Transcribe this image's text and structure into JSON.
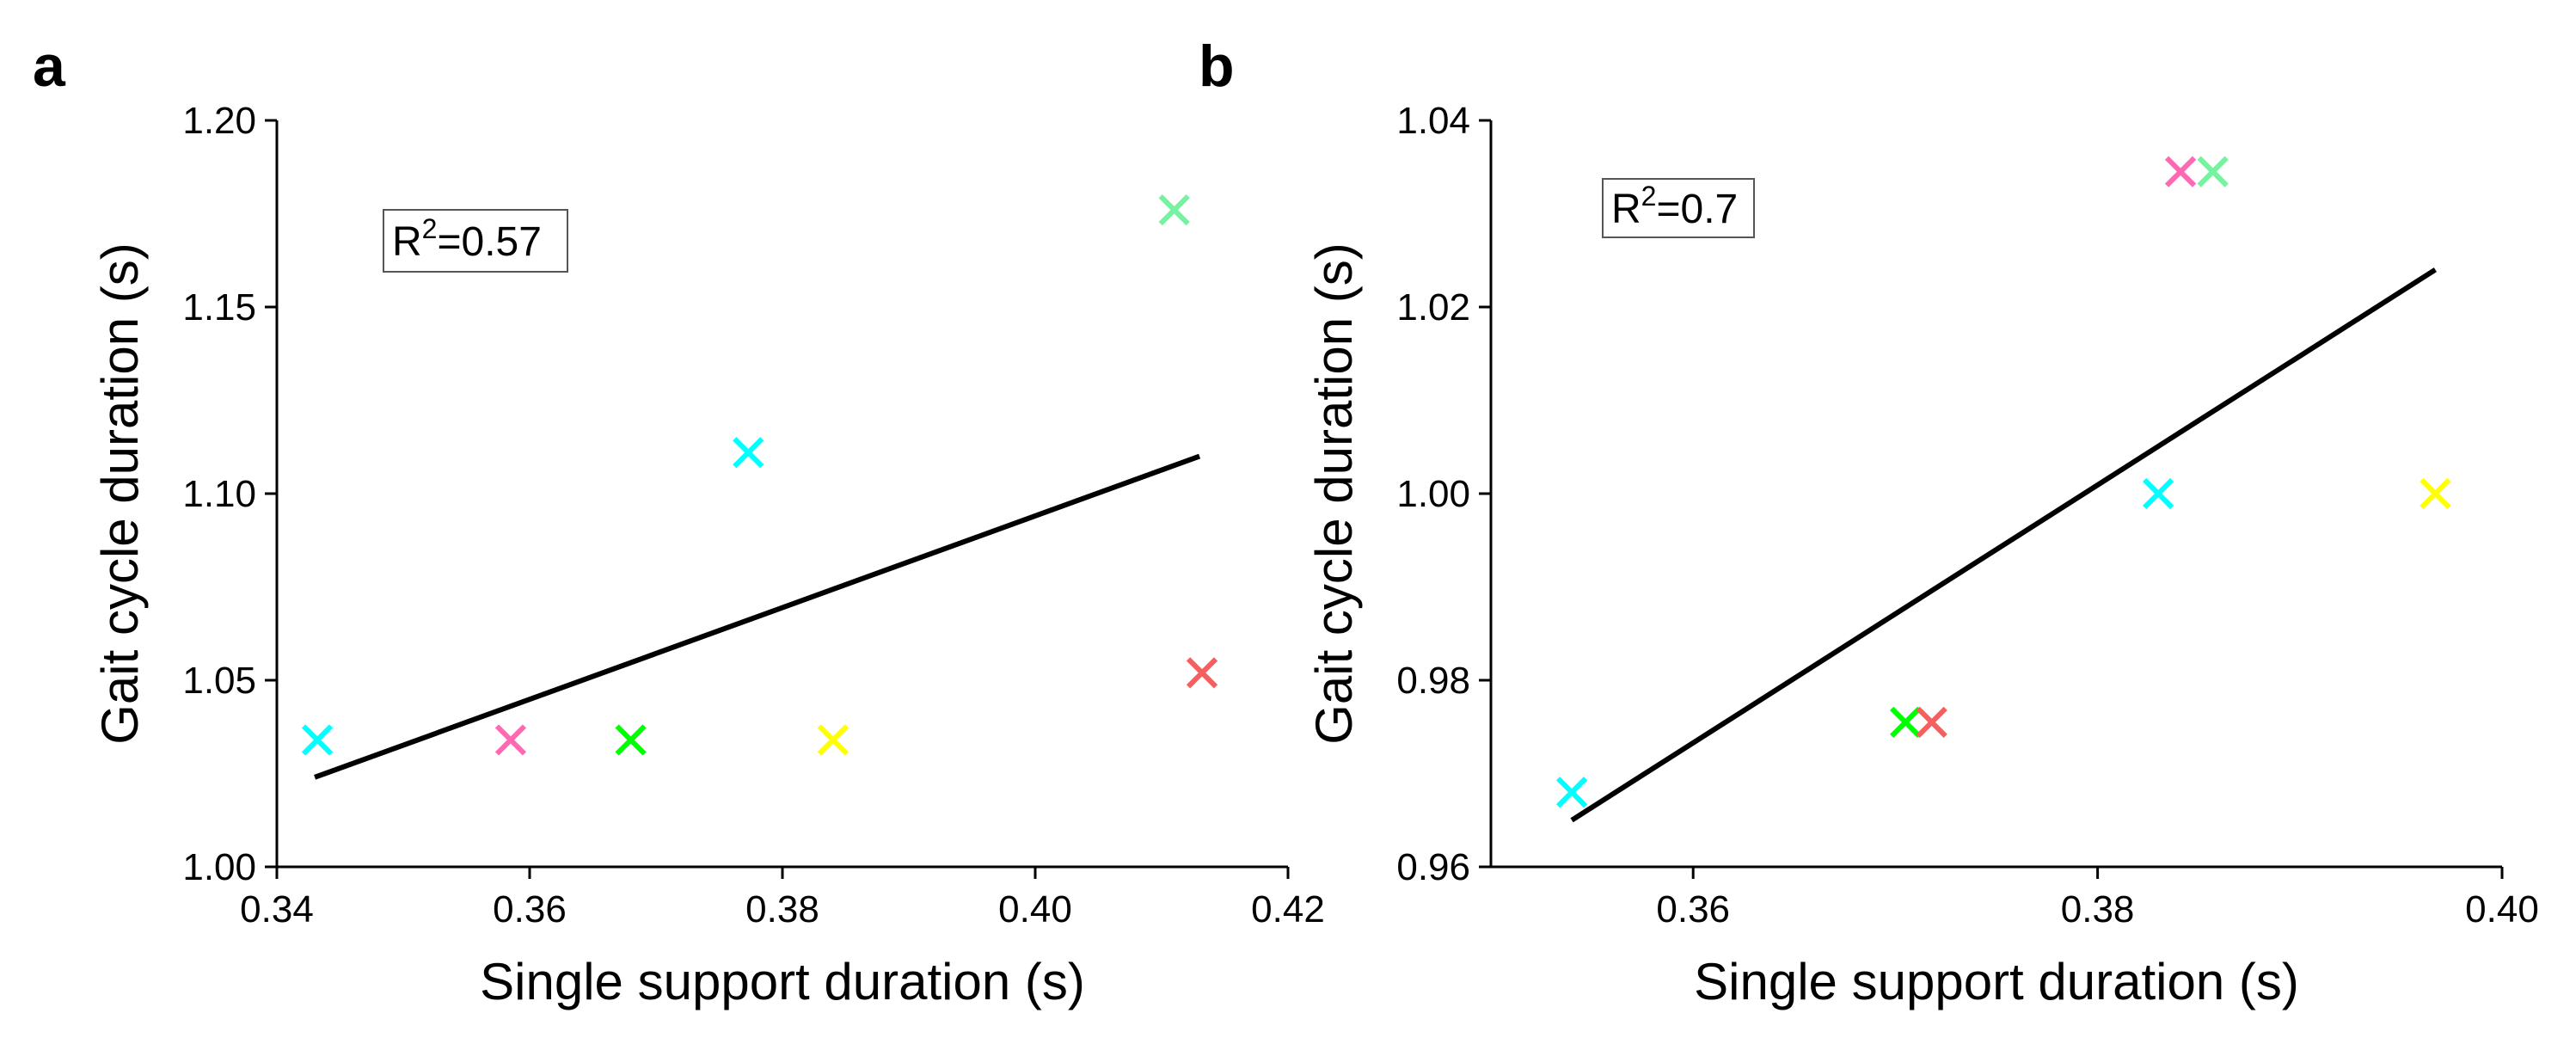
{
  "chart_data": [
    {
      "type": "scatter",
      "panel_label": "a",
      "xlabel": "Single support duration (s)",
      "ylabel": "Gait cycle duration (s)",
      "xlim": [
        0.34,
        0.42
      ],
      "ylim": [
        1.0,
        1.2
      ],
      "xticks": [
        "0.34",
        "0.36",
        "0.38",
        "0.40",
        "0.42"
      ],
      "yticks": [
        "1.00",
        "1.05",
        "1.10",
        "1.15",
        "1.20"
      ],
      "annotation": {
        "prefix": "R",
        "superscript": "2",
        "suffix": "=0.57"
      },
      "points": [
        {
          "x": 0.3432,
          "y": 1.034,
          "color": "#00ffff"
        },
        {
          "x": 0.3585,
          "y": 1.034,
          "color": "#ff69b4"
        },
        {
          "x": 0.368,
          "y": 1.034,
          "color": "#00ff00"
        },
        {
          "x": 0.3773,
          "y": 1.111,
          "color": "#00ffff"
        },
        {
          "x": 0.384,
          "y": 1.034,
          "color": "#ffff00"
        },
        {
          "x": 0.411,
          "y": 1.176,
          "color": "#77f2a0"
        },
        {
          "x": 0.4132,
          "y": 1.052,
          "color": "#f55f5f"
        }
      ],
      "fit_line": {
        "x": [
          0.343,
          0.413
        ],
        "y": [
          1.024,
          1.11
        ]
      }
    },
    {
      "type": "scatter",
      "panel_label": "b",
      "xlabel": "Single support duration (s)",
      "ylabel": "Gait cycle duration (s)",
      "xlim": [
        0.35,
        0.4
      ],
      "ylim": [
        0.96,
        1.04
      ],
      "xticks": [
        "0.36",
        "0.38",
        "0.40"
      ],
      "yticks": [
        "0.96",
        "0.98",
        "1.00",
        "1.02",
        "1.04"
      ],
      "annotation": {
        "prefix": "R",
        "superscript": "2",
        "suffix": "=0.7"
      },
      "points": [
        {
          "x": 0.354,
          "y": 0.968,
          "color": "#00ffff"
        },
        {
          "x": 0.3705,
          "y": 0.9755,
          "color": "#00ff00"
        },
        {
          "x": 0.3718,
          "y": 0.9755,
          "color": "#f55f5f"
        },
        {
          "x": 0.383,
          "y": 1.0,
          "color": "#00ffff"
        },
        {
          "x": 0.3841,
          "y": 1.0345,
          "color": "#ff69b4"
        },
        {
          "x": 0.3857,
          "y": 1.0345,
          "color": "#77f2a0"
        },
        {
          "x": 0.3967,
          "y": 1.0,
          "color": "#ffff00"
        }
      ],
      "fit_line": {
        "x": [
          0.354,
          0.3967
        ],
        "y": [
          0.965,
          1.024
        ]
      }
    }
  ]
}
